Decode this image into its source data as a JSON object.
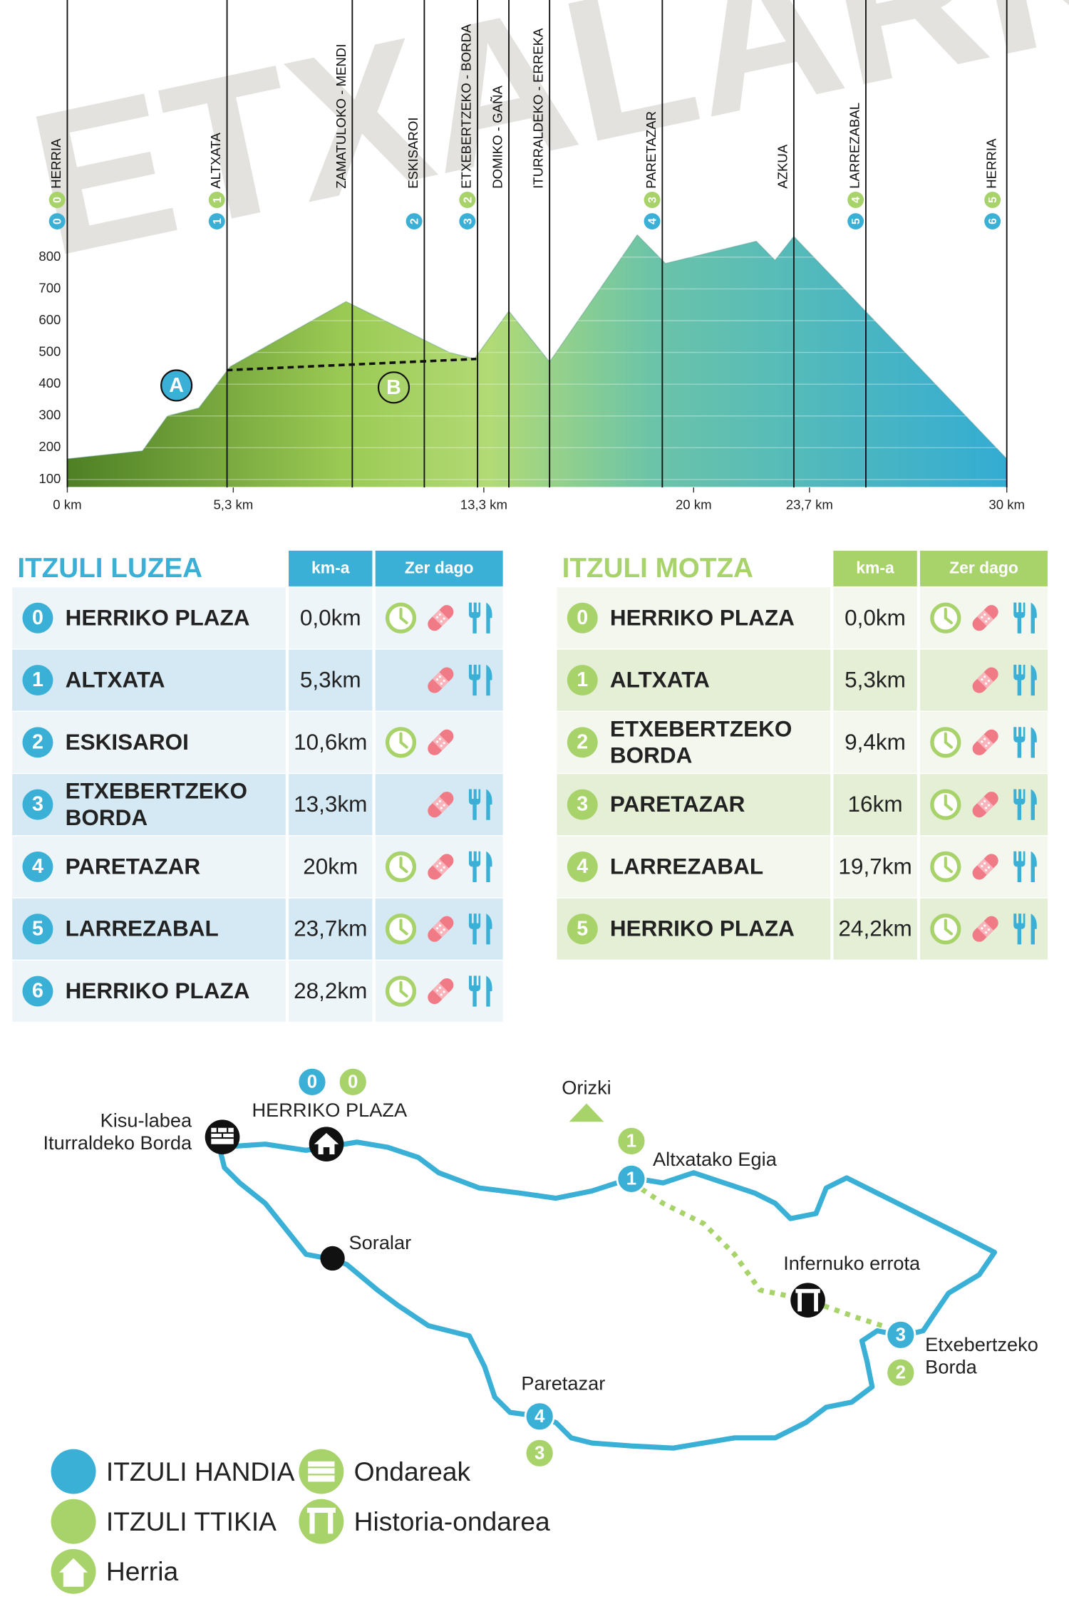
{
  "chart_data": {
    "type": "area",
    "watermark": "ETXALARKO",
    "x": [
      0,
      2.4,
      3.2,
      4.2,
      5.2,
      8.9,
      12.2,
      13.0,
      14.1,
      15.4,
      18.2,
      19.1,
      22.0,
      22.6,
      23.2,
      30
    ],
    "values": [
      165,
      190,
      300,
      325,
      455,
      660,
      500,
      480,
      630,
      470,
      870,
      780,
      850,
      790,
      865,
      165
    ],
    "xlim": [
      0,
      30
    ],
    "ylim": [
      75,
      900
    ],
    "yticks": [
      100,
      200,
      300,
      400,
      500,
      600,
      700,
      800
    ],
    "xticks": [
      {
        "value": 0,
        "label": "0 km"
      },
      {
        "value": 5.3,
        "label": "5,3 km"
      },
      {
        "value": 13.3,
        "label": "13,3 km"
      },
      {
        "value": 20,
        "label": "20 km"
      },
      {
        "value": 23.7,
        "label": "23,7 km"
      },
      {
        "value": 30,
        "label": "30 km"
      }
    ],
    "grid": true,
    "stations": [
      {
        "label": "HERRIA",
        "km": 0,
        "badges": [
          0,
          0
        ]
      },
      {
        "label": "ALTXATA",
        "km": 5.1,
        "badges": [
          1,
          1
        ]
      },
      {
        "label": "ZAMATULOKO - MENDI",
        "km": 9.1,
        "badges": []
      },
      {
        "label": "ESKISAROI",
        "km": 11.4,
        "badges": [
          2
        ]
      },
      {
        "label": "ETXEBERTZEKO - BORDA",
        "km": 13.1,
        "badges": [
          3,
          2
        ]
      },
      {
        "label": "DOMIKO - GAÑA",
        "km": 14.1,
        "badges": []
      },
      {
        "label": "ITURRALDEKO - ERREKA",
        "km": 15.4,
        "badges": []
      },
      {
        "label": "PARETAZAR",
        "km": 19.0,
        "badges": [
          4,
          3
        ]
      },
      {
        "label": "AZKUA",
        "km": 23.2,
        "badges": []
      },
      {
        "label": "LARREZABAL",
        "km": 25.5,
        "badges": [
          5,
          4
        ]
      },
      {
        "label": "HERRIA",
        "km": 30,
        "badges": [
          6,
          5
        ]
      }
    ],
    "markers": [
      "A",
      "B"
    ]
  },
  "tables": [
    {
      "title": "ITZULI LUZEA",
      "headers": [
        "km-a",
        "Zer dago"
      ],
      "rows": [
        {
          "num": 0,
          "name": "HERRIKO PLAZA",
          "km": "0,0km"
        },
        {
          "num": 1,
          "name": "ALTXATA",
          "km": "5,3km"
        },
        {
          "num": 2,
          "name": "ESKISAROI",
          "km": "10,6km"
        },
        {
          "num": 3,
          "name": "ETXEBERTZEKO BORDA",
          "km": "13,3km"
        },
        {
          "num": 4,
          "name": "PARETAZAR",
          "km": "20km"
        },
        {
          "num": 5,
          "name": "LARREZABAL",
          "km": "23,7km"
        },
        {
          "num": 6,
          "name": "HERRIKO PLAZA",
          "km": "28,2km"
        }
      ]
    },
    {
      "title": "ITZULI MOTZA",
      "headers": [
        "km-a",
        "Zer dago"
      ],
      "rows": [
        {
          "num": 0,
          "name": "HERRIKO PLAZA",
          "km": "0,0km"
        },
        {
          "num": 1,
          "name": "ALTXATA",
          "km": "5,3km"
        },
        {
          "num": 2,
          "name": "ETXEBERTZEKO BORDA",
          "km": "9,4km"
        },
        {
          "num": 3,
          "name": "PARETAZAR",
          "km": "16km"
        },
        {
          "num": 4,
          "name": "LARREZABAL",
          "km": "19,7km"
        },
        {
          "num": 5,
          "name": "HERRIKO PLAZA",
          "km": "24,2km"
        }
      ]
    }
  ],
  "map": {
    "places": [
      {
        "lines": [
          "HERRIKO PLAZA"
        ]
      },
      {
        "lines": [
          "Kisu-labea",
          "Iturraldeko Borda"
        ]
      },
      {
        "lines": [
          "Orizki"
        ]
      },
      {
        "lines": [
          "Altxatako Egia"
        ]
      },
      {
        "lines": [
          "Soralar"
        ]
      },
      {
        "lines": [
          "Infernuko errota"
        ]
      },
      {
        "lines": [
          "Etxebertzeko",
          "Borda"
        ]
      },
      {
        "lines": [
          "Paretazar"
        ]
      }
    ],
    "badges": [
      0,
      0,
      1,
      1,
      3,
      2,
      4,
      3
    ]
  },
  "legend": [
    "ITZULI HANDIA",
    "ITZULI TTIKIA",
    "Herria",
    "Ondareak",
    "Historia-ondarea"
  ]
}
